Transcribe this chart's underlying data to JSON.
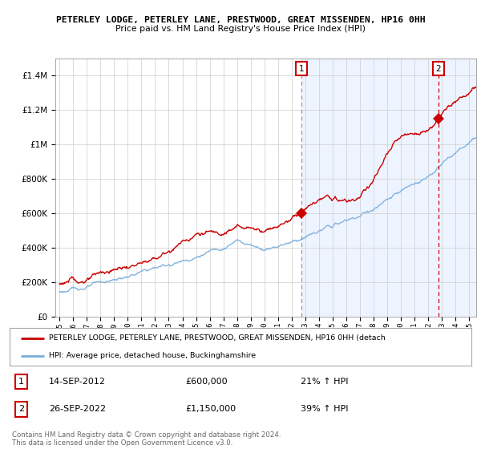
{
  "title_line1": "PETERLEY LODGE, PETERLEY LANE, PRESTWOOD, GREAT MISSENDEN, HP16 0HH",
  "title_line2": "Price paid vs. HM Land Registry's House Price Index (HPI)",
  "legend_line1": "PETERLEY LODGE, PETERLEY LANE, PRESTWOOD, GREAT MISSENDEN, HP16 0HH (detach",
  "legend_line2": "HPI: Average price, detached house, Buckinghamshire",
  "annotation1": {
    "num": "1",
    "date": "14-SEP-2012",
    "price": "£600,000",
    "pct": "21% ↑ HPI"
  },
  "annotation2": {
    "num": "2",
    "date": "26-SEP-2022",
    "price": "£1,150,000",
    "pct": "39% ↑ HPI"
  },
  "footer": "Contains HM Land Registry data © Crown copyright and database right 2024.\nThis data is licensed under the Open Government Licence v3.0.",
  "sale1_year": 2012.71,
  "sale1_price": 600000,
  "sale2_year": 2022.74,
  "sale2_price": 1150000,
  "red_color": "#cc0000",
  "blue_color": "#7aaddd",
  "bg_color": "#ddeeff",
  "bg_color_light": "#eef4ff",
  "grid_color": "#cccccc",
  "vline1_color": "#999999",
  "vline2_color": "#cc0000",
  "ylim_max": 1500000,
  "start_year": 1995,
  "end_year": 2025.5
}
